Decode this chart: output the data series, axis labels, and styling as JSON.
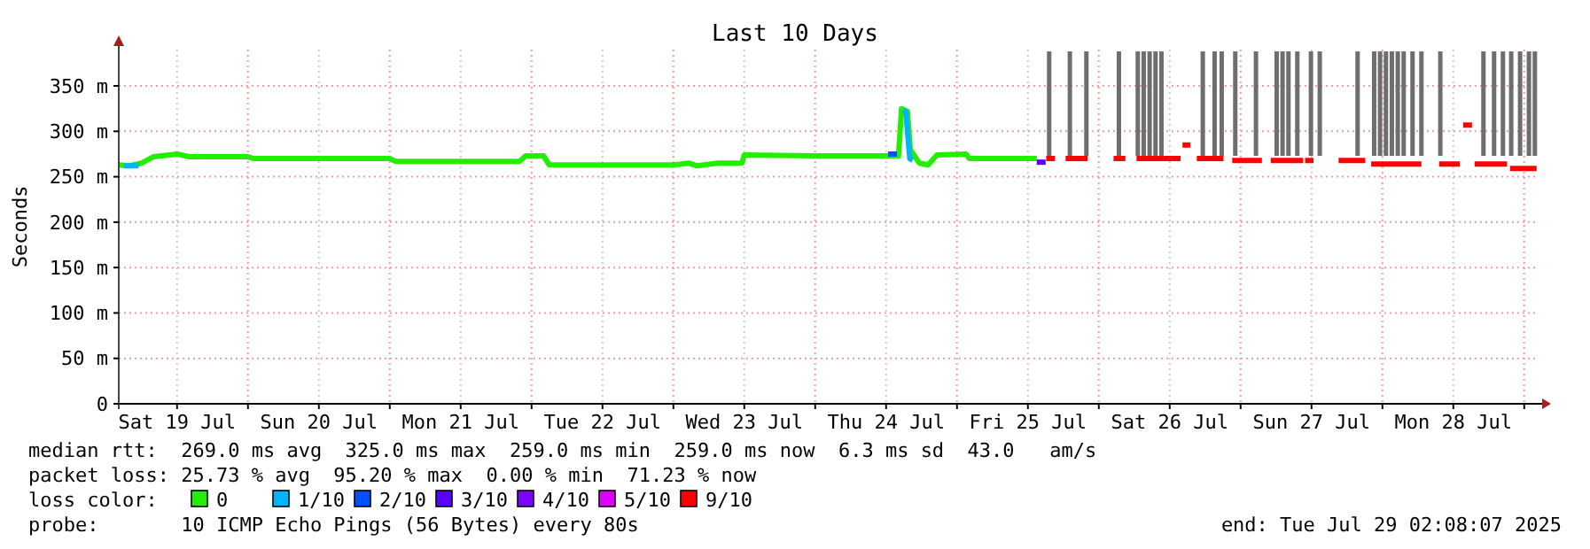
{
  "chart_data": {
    "type": "line",
    "title": "Last 10 Days",
    "ylabel": "Seconds",
    "legend_title": "loss color:",
    "legend": "bottom",
    "grid": true,
    "xlim": [
      "2025-07-19T02:08",
      "2025-07-29T02:08"
    ],
    "xticks": [
      {
        "value": "2025-07-19T12:00",
        "label": "Sat 19 Jul"
      },
      {
        "value": "2025-07-20T00:00",
        "label": null
      },
      {
        "value": "2025-07-20T12:00",
        "label": "Sun 20 Jul"
      },
      {
        "value": "2025-07-21T00:00",
        "label": null
      },
      {
        "value": "2025-07-21T12:00",
        "label": "Mon 21 Jul"
      },
      {
        "value": "2025-07-22T00:00",
        "label": null
      },
      {
        "value": "2025-07-22T12:00",
        "label": "Tue 22 Jul"
      },
      {
        "value": "2025-07-23T00:00",
        "label": null
      },
      {
        "value": "2025-07-23T12:00",
        "label": "Wed 23 Jul"
      },
      {
        "value": "2025-07-24T00:00",
        "label": null
      },
      {
        "value": "2025-07-24T12:00",
        "label": "Thu 24 Jul"
      },
      {
        "value": "2025-07-25T00:00",
        "label": null
      },
      {
        "value": "2025-07-25T12:00",
        "label": "Fri 25 Jul"
      },
      {
        "value": "2025-07-26T00:00",
        "label": null
      },
      {
        "value": "2025-07-26T12:00",
        "label": "Sat 26 Jul"
      },
      {
        "value": "2025-07-27T00:00",
        "label": null
      },
      {
        "value": "2025-07-27T12:00",
        "label": "Sun 27 Jul"
      },
      {
        "value": "2025-07-28T00:00",
        "label": null
      },
      {
        "value": "2025-07-28T12:00",
        "label": "Mon 28 Jul"
      },
      {
        "value": "2025-07-29T00:00",
        "label": null
      }
    ],
    "ylim": [
      0,
      390
    ],
    "yticks": [
      0,
      {
        "value": 50,
        "label": "50 m"
      },
      {
        "value": 100,
        "label": "100 m"
      },
      {
        "value": 150,
        "label": "150 m"
      },
      {
        "value": 200,
        "label": "200 m"
      },
      {
        "value": 250,
        "label": "250 m"
      },
      {
        "value": 300,
        "label": "300 m"
      },
      {
        "value": 350,
        "label": "350 m"
      }
    ],
    "series": [
      {
        "type": "bar",
        "color": "#6e6e6e",
        "x": [
          "2025-07-25T15:36",
          "2025-07-25T19:06",
          "2025-07-25T21:54",
          "2025-07-26T03:24",
          "2025-07-26T06:36",
          "2025-07-26T07:36",
          "2025-07-26T08:36",
          "2025-07-26T09:36",
          "2025-07-26T10:36",
          "2025-07-26T17:36",
          "2025-07-26T19:36",
          "2025-07-26T20:48",
          "2025-07-26T23:06",
          "2025-07-27T02:36",
          "2025-07-27T06:06",
          "2025-07-27T07:06",
          "2025-07-27T08:06",
          "2025-07-27T09:36",
          "2025-07-27T11:54",
          "2025-07-27T13:24",
          "2025-07-27T19:48",
          "2025-07-27T22:36",
          "2025-07-27T23:36",
          "2025-07-28T00:36",
          "2025-07-28T01:36",
          "2025-07-28T02:36",
          "2025-07-28T03:36",
          "2025-07-28T05:06",
          "2025-07-28T06:36",
          "2025-07-28T09:48",
          "2025-07-28T17:06",
          "2025-07-28T18:54",
          "2025-07-28T20:24",
          "2025-07-28T21:48",
          "2025-07-28T23:18",
          "2025-07-29T00:48",
          "2025-07-29T01:48"
        ],
        "base": [
          273,
          273,
          273,
          273,
          273,
          273,
          273,
          273,
          273,
          273,
          273,
          273,
          273,
          273,
          273,
          273,
          273,
          273,
          273,
          273,
          273,
          273,
          273,
          273,
          273,
          273,
          273,
          273,
          273,
          273,
          273,
          273,
          273,
          273,
          273,
          273,
          273
        ],
        "values": [
          115,
          115,
          115,
          115,
          115,
          115,
          115,
          115,
          115,
          115,
          115,
          115,
          115,
          115,
          115,
          115,
          115,
          115,
          115,
          115,
          115,
          115,
          115,
          115,
          115,
          115,
          115,
          115,
          115,
          115,
          115,
          115,
          115,
          115,
          115,
          115,
          115
        ]
      },
      {
        "name": "0",
        "color": "#22ee00",
        "x": [
          "2025-07-19T02:08",
          "2025-07-19T04:00",
          "2025-07-19T06:00",
          "2025-07-19T08:00",
          "2025-07-19T12:00",
          "2025-07-19T14:00",
          "2025-07-20T00:00",
          "2025-07-20T01:00",
          "2025-07-21T00:00",
          "2025-07-21T01:00",
          "2025-07-21T22:00",
          "2025-07-21T23:00",
          "2025-07-22T02:00",
          "2025-07-22T03:00",
          "2025-07-23T00:00",
          "2025-07-23T02:36",
          "2025-07-23T04:00",
          "2025-07-23T07:30",
          "2025-07-23T11:36",
          "2025-07-23T12:00",
          "2025-07-24T00:00",
          "2025-07-24T01:24",
          "2025-07-24T14:06",
          "2025-07-24T14:37",
          "2025-07-24T15:36",
          "2025-07-24T16:06",
          "2025-07-24T17:37",
          "2025-07-24T19:06",
          "2025-07-24T20:37",
          "2025-07-25T01:30",
          "2025-07-25T02:06",
          "2025-07-25T13:30"
        ],
        "values": [
          263,
          262,
          265,
          272,
          275,
          272,
          272,
          270,
          270,
          267,
          267,
          273,
          273,
          263,
          263,
          265,
          262,
          265,
          265,
          274,
          273,
          273,
          273,
          325,
          322,
          280,
          265,
          263,
          274,
          275,
          270,
          270
        ]
      },
      {
        "name": "1/10",
        "color": "#00b4ff",
        "x": [
          "2025-07-19T03:00",
          "2025-07-19T05:30",
          "2025-07-24T14:00",
          "2025-07-24T14:50",
          "2025-07-24T15:20",
          "2025-07-24T16:00",
          "2025-07-24T16:30"
        ],
        "values": [
          262,
          262,
          null,
          323,
          322,
          270,
          268
        ]
      },
      {
        "name": "2/10",
        "color": "#0050ff",
        "x": [
          "2025-07-24T12:20",
          "2025-07-24T13:50"
        ],
        "values": [
          275,
          275
        ]
      },
      {
        "name": "3/10",
        "color": "#5a00ff",
        "x": [
          "2025-07-25T13:30",
          "2025-07-25T15:00"
        ],
        "values": [
          266,
          266
        ]
      },
      {
        "name": "4/10",
        "color": "#7e00ff"
      },
      {
        "name": "5/10",
        "color": "#dd00ff"
      },
      {
        "name": "9/10",
        "color": "#ff0000",
        "x": [
          "2025-07-25T15:06",
          "2025-07-25T16:35",
          "2025-07-25T17:00",
          "2025-07-25T18:23",
          "2025-07-25T22:06",
          "2025-07-26T00:00",
          "2025-07-26T02:30",
          "2025-07-26T04:30",
          "2025-07-26T05:00",
          "2025-07-26T06:23",
          "2025-07-26T12:06",
          "2025-07-26T12:30",
          "2025-07-26T12:50",
          "2025-07-26T13:50",
          "2025-07-26T14:00",
          "2025-07-26T14:10",
          "2025-07-26T15:30",
          "2025-07-26T15:50",
          "2025-07-26T16:35",
          "2025-07-26T21:06",
          "2025-07-26T22:00",
          "2025-07-26T22:35",
          "2025-07-27T03:36",
          "2025-07-27T04:00",
          "2025-07-27T05:06",
          "2025-07-27T10:35",
          "2025-07-27T10:45",
          "2025-07-27T10:55",
          "2025-07-27T12:20",
          "2025-07-27T13:00",
          "2025-07-27T16:35",
          "2025-07-27T21:06",
          "2025-07-27T21:30",
          "2025-07-27T22:06",
          "2025-07-28T06:36",
          "2025-07-28T08:00",
          "2025-07-28T09:36",
          "2025-07-28T13:06",
          "2025-07-28T13:20",
          "2025-07-28T13:40",
          "2025-07-28T15:10",
          "2025-07-28T15:20",
          "2025-07-28T15:36",
          "2025-07-28T21:06",
          "2025-07-28T21:20",
          "2025-07-28T21:36",
          "2025-07-29T02:06"
        ],
        "values": [
          270,
          270,
          null,
          270,
          270,
          null,
          270,
          270,
          null,
          270,
          270,
          270,
          270,
          270,
          null,
          285,
          285,
          null,
          270,
          270,
          null,
          268,
          268,
          null,
          268,
          268,
          null,
          268,
          268,
          null,
          268,
          268,
          null,
          264,
          264,
          null,
          264,
          264,
          null,
          307,
          307,
          null,
          264,
          264,
          null,
          259,
          259
        ]
      }
    ],
    "annotations": [
      "median rtt:  269.0 ms avg  325.0 ms max  259.0 ms min  259.0 ms now  6.3 ms sd  43.0   am/s",
      "packet loss: 25.73 % avg  95.20 % max  0.00 % min  71.23 % now",
      "probe:       10 ICMP Echo Pings (56 Bytes) every 80s",
      "end: Tue Jul 29 02:08:07 2025"
    ]
  }
}
